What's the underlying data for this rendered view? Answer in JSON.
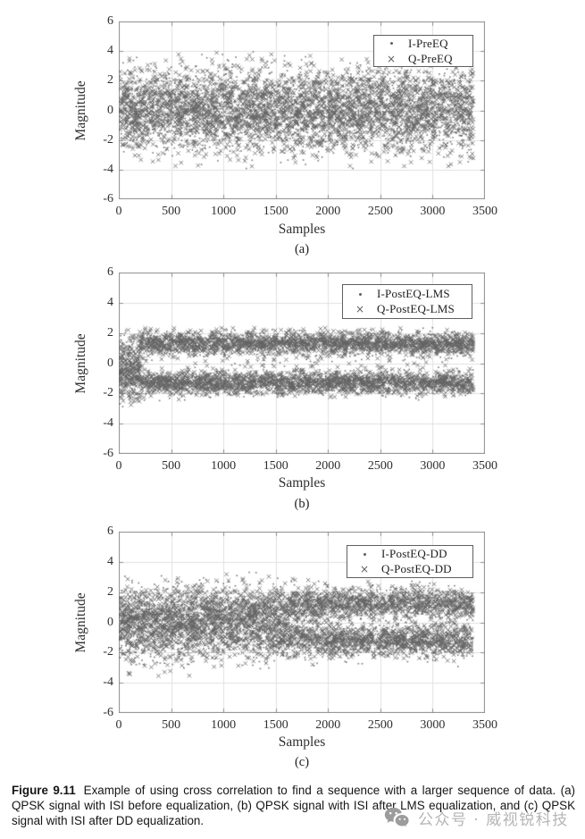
{
  "caption": {
    "label": "Figure 9.11",
    "text": "Example of using cross correlation to find a sequence with a larger sequence of data. (a) QPSK signal with ISI before equalization, (b) QPSK signal with ISI after LMS equalization, and (c) QPSK signal with ISI after DD equalization."
  },
  "watermark": {
    "icon": "wechat-icon",
    "text": "公众号 · 威视锐科技"
  },
  "colors": {
    "marker": "#636363",
    "grid": "#e0e0e0",
    "axis": "#8c8c8c",
    "tick_text": "#2f2f2f",
    "legend_border": "#5f5f5f",
    "watermark_text": "#b5b5b5",
    "watermark_icon": "#9c9c9c"
  },
  "chart_data": [
    {
      "type": "scatter",
      "panel": "(a)",
      "xlabel": "Samples",
      "ylabel": "Magnitude",
      "xlim": [
        0,
        3500
      ],
      "ylim": [
        -6,
        6
      ],
      "xticks": [
        0,
        500,
        1000,
        1500,
        2000,
        2500,
        3000,
        3500
      ],
      "yticks": [
        -6,
        -4,
        -2,
        0,
        2,
        4,
        6
      ],
      "grid": true,
      "legend_position": "top-right",
      "series": [
        {
          "name": "I-PreEQ",
          "marker": "dot",
          "points": 2600,
          "x_range": [
            8,
            3390
          ],
          "dist": {
            "kind": "gaussian",
            "center": 0,
            "sigma": 1.35,
            "clip": [
              -3.95,
              3.95
            ]
          }
        },
        {
          "name": "Q-PreEQ",
          "marker": "x",
          "points": 2600,
          "x_range": [
            8,
            3390
          ],
          "dist": {
            "kind": "gaussian",
            "center": 0,
            "sigma": 1.4,
            "clip": [
              -3.9,
              3.9
            ]
          }
        }
      ]
    },
    {
      "type": "scatter",
      "panel": "(b)",
      "xlabel": "Samples",
      "ylabel": "Magnitude",
      "xlim": [
        0,
        3500
      ],
      "ylim": [
        -6,
        6
      ],
      "xticks": [
        0,
        500,
        1000,
        1500,
        2000,
        2500,
        3000,
        3500
      ],
      "yticks": [
        -6,
        -4,
        -2,
        0,
        2,
        4,
        6
      ],
      "grid": true,
      "legend_position": "top-right",
      "series": [
        {
          "name": "I-PostEQ-LMS",
          "marker": "dot",
          "points": 3000,
          "x_range": [
            8,
            3390
          ],
          "dist": {
            "kind": "two_level",
            "levels": [
              1.3,
              -1.3
            ],
            "sigma": 0.38,
            "clip": [
              -2.5,
              2.35
            ],
            "transient_until": 210,
            "transient_center": -0.3,
            "transient_sigma": 1.15,
            "transient_clip": [
              -3.05,
              2.35
            ],
            "stray_rate": 0.012,
            "stray_range": [
              -0.55,
              0.55
            ]
          }
        },
        {
          "name": "Q-PostEQ-LMS",
          "marker": "x",
          "points": 3000,
          "x_range": [
            8,
            3390
          ],
          "dist": {
            "kind": "two_level",
            "levels": [
              1.3,
              -1.3
            ],
            "sigma": 0.38,
            "clip": [
              -2.5,
              2.35
            ],
            "transient_until": 210,
            "transient_center": -0.3,
            "transient_sigma": 1.15,
            "transient_clip": [
              -3.05,
              2.35
            ],
            "stray_rate": 0.012,
            "stray_range": [
              -0.55,
              0.55
            ]
          }
        }
      ]
    },
    {
      "type": "scatter",
      "panel": "(c)",
      "xlabel": "Samples",
      "ylabel": "Magnitude",
      "xlim": [
        0,
        3500
      ],
      "ylim": [
        -6,
        6
      ],
      "xticks": [
        0,
        500,
        1000,
        1500,
        2000,
        2500,
        3000,
        3500
      ],
      "yticks": [
        -6,
        -4,
        -2,
        0,
        2,
        4,
        6
      ],
      "grid": true,
      "legend_position": "top-right",
      "series": [
        {
          "name": "I-PostEQ-DD",
          "marker": "dot",
          "points": 3000,
          "x_range": [
            8,
            3390
          ],
          "dist": {
            "kind": "converging",
            "levels": [
              1.25,
              -1.25
            ],
            "start_sigma": 1.35,
            "end_sigma": 0.52,
            "start_center_scale": 0.12,
            "converge_x": 2050,
            "clip": [
              -3.55,
              3.4
            ],
            "stray_rate_start": 0.05,
            "stray_range": [
              -0.5,
              0.5
            ]
          }
        },
        {
          "name": "Q-PostEQ-DD",
          "marker": "x",
          "points": 3000,
          "x_range": [
            8,
            3390
          ],
          "dist": {
            "kind": "converging",
            "levels": [
              1.25,
              -1.25
            ],
            "start_sigma": 1.35,
            "end_sigma": 0.52,
            "start_center_scale": 0.12,
            "converge_x": 2050,
            "clip": [
              -3.55,
              3.4
            ],
            "stray_rate_start": 0.05,
            "stray_range": [
              -0.5,
              0.5
            ]
          }
        }
      ]
    }
  ]
}
